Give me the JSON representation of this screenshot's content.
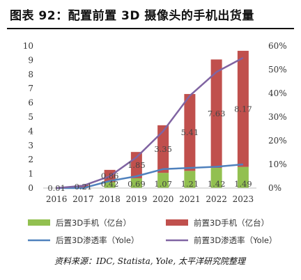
{
  "title": "图表 92：配置前置 3D 摄像头的手机出货量",
  "source": "资料来源：IDC, Statista, Yole, 太平洋研究院整理",
  "chart_data": {
    "type": "bar",
    "categories": [
      "2016",
      "2017",
      "2018",
      "2019",
      "2020",
      "2021",
      "2022",
      "2023"
    ],
    "y_left": {
      "min": 0,
      "max": 10,
      "ticks": [
        "0",
        "1",
        "2",
        "3",
        "4",
        "5",
        "6",
        "7",
        "8",
        "9",
        "10"
      ]
    },
    "y_right": {
      "min": 0,
      "max": 60,
      "ticks": [
        "0%",
        "10%",
        "20%",
        "30%",
        "40%",
        "50%",
        "60%"
      ]
    },
    "series": [
      {
        "name": "后置3D手机（亿台）",
        "kind": "bar",
        "axis": "left",
        "color": "#92c050",
        "values": [
          0,
          0,
          0.42,
          0.69,
          1.07,
          1.21,
          1.42,
          1.49
        ],
        "labels": [
          "",
          "",
          "0.42",
          "0.69",
          "1.07",
          "1.21",
          "1.42",
          "1.49"
        ]
      },
      {
        "name": "前置3D手机（亿台）",
        "kind": "bar",
        "axis": "left",
        "color": "#c0504d",
        "values": [
          0.01,
          0.21,
          0.86,
          1.85,
          3.35,
          5.41,
          7.63,
          8.17
        ],
        "labels": [
          "0.01",
          "0.21",
          "0.86",
          "1.85",
          "3.35",
          "5.41",
          "7.63",
          "8.17"
        ]
      },
      {
        "name": "后置3D渗透率（Yole）",
        "kind": "line",
        "axis": "right",
        "color": "#4f81bd",
        "values": [
          0,
          0,
          3,
          5,
          8,
          8.5,
          9,
          10
        ]
      },
      {
        "name": "前置3D渗透率（Yole）",
        "kind": "line",
        "axis": "right",
        "color": "#8064a2",
        "values": [
          0,
          1,
          5,
          13,
          24,
          39,
          49,
          55
        ]
      }
    ],
    "legend_position": "bottom",
    "grid": false
  }
}
